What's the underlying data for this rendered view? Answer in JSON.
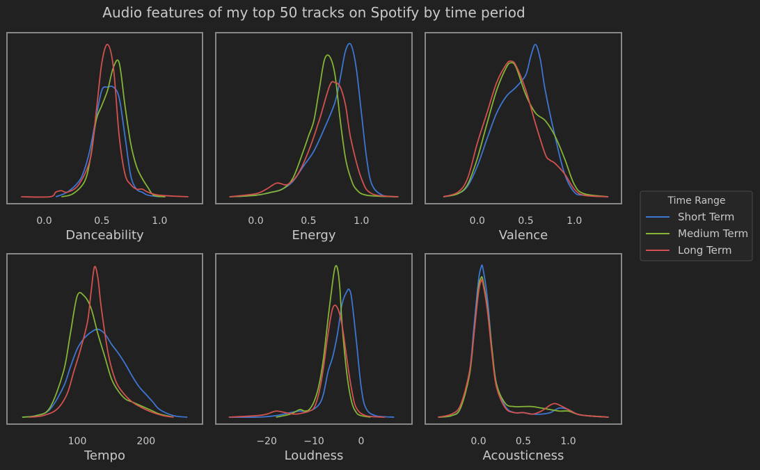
{
  "chart_data": {
    "type": "line",
    "title": "Audio features of my top 50 tracks on Spotify by time period",
    "colors": {
      "Short Term": "#3e76d3",
      "Medium Term": "#84b536",
      "Long Term": "#d35250",
      "background": "#212121",
      "frame": "#888888",
      "text": "#c9c9c9"
    },
    "legend": {
      "title": "Time Range",
      "placement": "right",
      "entries": [
        "Short Term",
        "Medium Term",
        "Long Term"
      ]
    },
    "grid": false,
    "panels": [
      {
        "xlabel": "Danceability",
        "xlim": [
          -0.25,
          1.3
        ],
        "ylim": [
          0,
          1.05
        ],
        "xticks": [
          0.0,
          0.5,
          1.0
        ],
        "xtick_labels": [
          "0.0",
          "0.5",
          "1.0"
        ],
        "series": [
          {
            "name": "Short Term",
            "x": [
              0.1,
              0.2,
              0.3,
              0.35,
              0.4,
              0.45,
              0.5,
              0.55,
              0.6,
              0.65,
              0.7,
              0.75,
              0.8,
              0.85,
              0.9,
              1.0
            ],
            "y": [
              0.0,
              0.03,
              0.1,
              0.18,
              0.32,
              0.52,
              0.7,
              0.72,
              0.72,
              0.65,
              0.4,
              0.14,
              0.05,
              0.03,
              0.01,
              0.0
            ]
          },
          {
            "name": "Medium Term",
            "x": [
              0.15,
              0.25,
              0.35,
              0.4,
              0.45,
              0.5,
              0.55,
              0.6,
              0.65,
              0.7,
              0.75,
              0.8,
              0.85,
              0.9,
              0.95,
              1.05
            ],
            "y": [
              0.0,
              0.02,
              0.1,
              0.25,
              0.5,
              0.6,
              0.7,
              0.85,
              0.88,
              0.6,
              0.35,
              0.2,
              0.12,
              0.06,
              0.01,
              0.0
            ]
          },
          {
            "name": "Long Term",
            "x": [
              -0.2,
              0.05,
              0.1,
              0.15,
              0.2,
              0.3,
              0.4,
              0.45,
              0.5,
              0.55,
              0.6,
              0.65,
              0.7,
              0.75,
              0.8,
              0.85,
              0.9,
              1.0,
              1.25
            ],
            "y": [
              0.0,
              0.0,
              0.03,
              0.04,
              0.03,
              0.08,
              0.25,
              0.55,
              0.88,
              1.0,
              0.85,
              0.4,
              0.15,
              0.08,
              0.05,
              0.05,
              0.03,
              0.01,
              0.0
            ]
          }
        ]
      },
      {
        "xlabel": "Energy",
        "xlim": [
          -0.3,
          1.4
        ],
        "ylim": [
          0,
          1.05
        ],
        "xticks": [
          0.0,
          0.5,
          1.0
        ],
        "xtick_labels": [
          "0.0",
          "0.5",
          "1.0"
        ],
        "series": [
          {
            "name": "Short Term",
            "x": [
              -0.25,
              0.0,
              0.15,
              0.25,
              0.35,
              0.45,
              0.55,
              0.65,
              0.75,
              0.8,
              0.85,
              0.9,
              0.95,
              1.0,
              1.05,
              1.1,
              1.2,
              1.35
            ],
            "y": [
              0.0,
              0.01,
              0.03,
              0.05,
              0.1,
              0.2,
              0.3,
              0.45,
              0.62,
              0.78,
              0.96,
              1.0,
              0.85,
              0.55,
              0.25,
              0.08,
              0.01,
              0.0
            ]
          },
          {
            "name": "Medium Term",
            "x": [
              -0.25,
              0.0,
              0.15,
              0.25,
              0.35,
              0.45,
              0.5,
              0.55,
              0.6,
              0.65,
              0.7,
              0.75,
              0.8,
              0.85,
              0.9,
              0.95,
              1.05,
              1.35
            ],
            "y": [
              0.0,
              0.01,
              0.03,
              0.05,
              0.12,
              0.3,
              0.4,
              0.5,
              0.7,
              0.9,
              0.92,
              0.8,
              0.5,
              0.25,
              0.12,
              0.05,
              0.01,
              0.0
            ]
          },
          {
            "name": "Long Term",
            "x": [
              -0.25,
              0.0,
              0.1,
              0.2,
              0.3,
              0.4,
              0.5,
              0.6,
              0.7,
              0.75,
              0.8,
              0.85,
              0.9,
              1.0,
              1.1,
              1.35
            ],
            "y": [
              0.0,
              0.02,
              0.05,
              0.09,
              0.08,
              0.15,
              0.3,
              0.5,
              0.73,
              0.75,
              0.72,
              0.6,
              0.38,
              0.12,
              0.02,
              0.0
            ]
          }
        ]
      },
      {
        "xlabel": "Valence",
        "xlim": [
          -0.45,
          1.4
        ],
        "ylim": [
          0,
          1.05
        ],
        "xticks": [
          0.0,
          0.5,
          1.0
        ],
        "xtick_labels": [
          "0.0",
          "0.5",
          "1.0"
        ],
        "series": [
          {
            "name": "Short Term",
            "x": [
              -0.35,
              -0.2,
              -0.1,
              0.0,
              0.1,
              0.2,
              0.3,
              0.4,
              0.5,
              0.55,
              0.6,
              0.65,
              0.7,
              0.8,
              0.9,
              1.0,
              1.1,
              1.35
            ],
            "y": [
              0.0,
              0.02,
              0.07,
              0.2,
              0.38,
              0.55,
              0.66,
              0.72,
              0.8,
              0.92,
              1.0,
              0.9,
              0.7,
              0.4,
              0.15,
              0.03,
              0.01,
              0.0
            ]
          },
          {
            "name": "Medium Term",
            "x": [
              -0.35,
              -0.2,
              -0.1,
              0.0,
              0.1,
              0.2,
              0.3,
              0.35,
              0.4,
              0.5,
              0.6,
              0.7,
              0.8,
              0.9,
              1.0,
              1.1,
              1.35
            ],
            "y": [
              0.0,
              0.02,
              0.08,
              0.25,
              0.48,
              0.7,
              0.85,
              0.88,
              0.85,
              0.67,
              0.55,
              0.5,
              0.4,
              0.25,
              0.08,
              0.02,
              0.0
            ]
          },
          {
            "name": "Long Term",
            "x": [
              -0.35,
              -0.2,
              -0.1,
              0.0,
              0.1,
              0.2,
              0.3,
              0.35,
              0.4,
              0.5,
              0.6,
              0.7,
              0.75,
              0.8,
              0.9,
              1.0,
              1.1,
              1.35
            ],
            "y": [
              0.0,
              0.03,
              0.12,
              0.35,
              0.55,
              0.75,
              0.87,
              0.89,
              0.86,
              0.7,
              0.48,
              0.28,
              0.24,
              0.22,
              0.15,
              0.05,
              0.01,
              0.0
            ]
          }
        ]
      },
      {
        "xlabel": "Tempo",
        "xlim": [
          10,
          270
        ],
        "ylim": [
          0,
          1.05
        ],
        "xticks": [
          100,
          200
        ],
        "xtick_labels": [
          "100",
          "200"
        ],
        "series": [
          {
            "name": "Short Term",
            "x": [
              20,
              40,
              60,
              80,
              90,
              100,
              110,
              120,
              130,
              140,
              150,
              160,
              170,
              180,
              190,
              200,
              210,
              220,
              240,
              260
            ],
            "y": [
              0.0,
              0.01,
              0.05,
              0.2,
              0.33,
              0.45,
              0.52,
              0.56,
              0.58,
              0.55,
              0.48,
              0.42,
              0.35,
              0.27,
              0.2,
              0.15,
              0.1,
              0.05,
              0.01,
              0.0
            ]
          },
          {
            "name": "Medium Term",
            "x": [
              20,
              40,
              60,
              80,
              90,
              100,
              110,
              120,
              130,
              140,
              150,
              160,
              170,
              180,
              190,
              200,
              210,
              220,
              240
            ],
            "y": [
              0.0,
              0.01,
              0.06,
              0.3,
              0.55,
              0.8,
              0.8,
              0.72,
              0.55,
              0.4,
              0.25,
              0.17,
              0.12,
              0.1,
              0.08,
              0.06,
              0.04,
              0.02,
              0.0
            ]
          },
          {
            "name": "Long Term",
            "x": [
              30,
              50,
              70,
              85,
              95,
              105,
              115,
              120,
              125,
              130,
              135,
              145,
              155,
              165,
              180,
              195,
              210,
              225,
              240
            ],
            "y": [
              0.0,
              0.01,
              0.05,
              0.15,
              0.3,
              0.45,
              0.63,
              0.82,
              0.99,
              0.92,
              0.72,
              0.42,
              0.25,
              0.17,
              0.1,
              0.06,
              0.03,
              0.01,
              0.0
            ]
          }
        ]
      },
      {
        "xlabel": "Loudness",
        "xlim": [
          -29,
          9
        ],
        "ylim": [
          0,
          1.05
        ],
        "xticks": [
          -20,
          -10,
          0
        ],
        "xtick_labels": [
          "−20",
          "−10",
          "0"
        ],
        "series": [
          {
            "name": "Short Term",
            "x": [
              -28,
              -22,
              -18,
              -15,
              -13,
              -11,
              -9,
              -8,
              -7,
              -6,
              -5,
              -4,
              -3,
              -2.5,
              -2,
              -1,
              0,
              1,
              3,
              7
            ],
            "y": [
              0.0,
              0.0,
              0.01,
              0.03,
              0.04,
              0.04,
              0.08,
              0.15,
              0.3,
              0.4,
              0.55,
              0.75,
              0.83,
              0.84,
              0.78,
              0.5,
              0.2,
              0.06,
              0.01,
              0.0
            ]
          },
          {
            "name": "Medium Term",
            "x": [
              -18,
              -15,
              -13,
              -12,
              -11,
              -10,
              -9,
              -8,
              -7,
              -6,
              -5.5,
              -5,
              -4.5,
              -4,
              -3,
              -2,
              -1,
              0,
              2
            ],
            "y": [
              0.0,
              0.02,
              0.05,
              0.04,
              0.05,
              0.1,
              0.2,
              0.38,
              0.65,
              0.9,
              0.99,
              0.98,
              0.85,
              0.6,
              0.28,
              0.1,
              0.03,
              0.01,
              0.0
            ]
          },
          {
            "name": "Long Term",
            "x": [
              -28,
              -22,
              -20,
              -18,
              -16,
              -14,
              -12,
              -11,
              -10,
              -9,
              -8,
              -7,
              -6,
              -5,
              -4,
              -3,
              -2,
              -1,
              1,
              5
            ],
            "y": [
              0.0,
              0.01,
              0.02,
              0.04,
              0.03,
              0.02,
              0.03,
              0.04,
              0.06,
              0.15,
              0.32,
              0.55,
              0.72,
              0.72,
              0.6,
              0.38,
              0.18,
              0.06,
              0.01,
              0.0
            ]
          }
        ]
      },
      {
        "xlabel": "Acousticness",
        "xlim": [
          -0.5,
          1.5
        ],
        "ylim": [
          0,
          1.05
        ],
        "xticks": [
          0.0,
          0.5,
          1.0
        ],
        "xtick_labels": [
          "0.0",
          "0.5",
          "1.0"
        ],
        "series": [
          {
            "name": "Short Term",
            "x": [
              -0.45,
              -0.3,
              -0.2,
              -0.1,
              -0.05,
              0.0,
              0.03,
              0.05,
              0.1,
              0.15,
              0.2,
              0.3,
              0.4,
              0.5,
              0.6,
              0.7,
              0.8,
              0.9,
              1.0,
              1.1,
              1.2,
              1.45
            ],
            "y": [
              0.0,
              0.01,
              0.06,
              0.3,
              0.6,
              0.9,
              0.99,
              0.98,
              0.78,
              0.45,
              0.22,
              0.07,
              0.03,
              0.03,
              0.02,
              0.02,
              0.03,
              0.06,
              0.05,
              0.02,
              0.01,
              0.0
            ]
          },
          {
            "name": "Medium Term",
            "x": [
              -0.45,
              -0.3,
              -0.2,
              -0.1,
              -0.05,
              0.0,
              0.03,
              0.05,
              0.1,
              0.15,
              0.2,
              0.3,
              0.4,
              0.5,
              0.6,
              0.7,
              0.8,
              0.9,
              1.0,
              1.1,
              1.2,
              1.45
            ],
            "y": [
              0.0,
              0.01,
              0.06,
              0.28,
              0.55,
              0.85,
              0.92,
              0.9,
              0.72,
              0.45,
              0.22,
              0.09,
              0.07,
              0.07,
              0.07,
              0.06,
              0.05,
              0.04,
              0.04,
              0.02,
              0.01,
              0.0
            ]
          },
          {
            "name": "Long Term",
            "x": [
              -0.45,
              -0.3,
              -0.2,
              -0.1,
              -0.05,
              0.0,
              0.03,
              0.05,
              0.1,
              0.15,
              0.2,
              0.3,
              0.4,
              0.5,
              0.6,
              0.7,
              0.8,
              0.85,
              0.9,
              1.0,
              1.1,
              1.2,
              1.45
            ],
            "y": [
              0.0,
              0.02,
              0.08,
              0.3,
              0.55,
              0.82,
              0.9,
              0.88,
              0.7,
              0.42,
              0.2,
              0.06,
              0.03,
              0.03,
              0.02,
              0.04,
              0.08,
              0.09,
              0.08,
              0.05,
              0.02,
              0.01,
              0.0
            ]
          }
        ]
      }
    ]
  }
}
